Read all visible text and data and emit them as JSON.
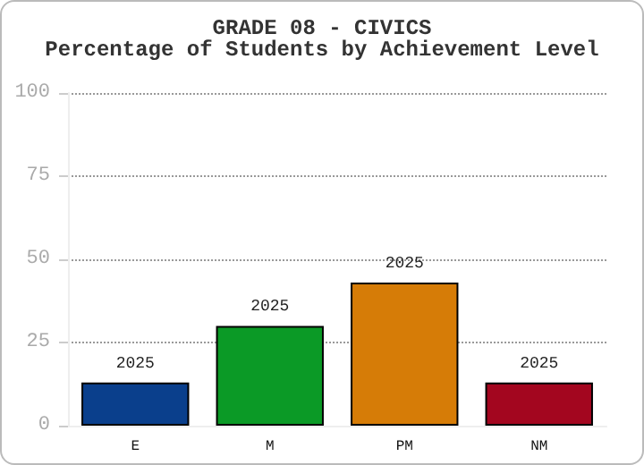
{
  "chart_data": {
    "type": "bar",
    "title": "GRADE 08 - CIVICS\nPercentage of Students by Achievement Level",
    "categories": [
      "E",
      "M",
      "PM",
      "NM"
    ],
    "series": [
      {
        "name": "2025",
        "values": [
          13,
          30,
          43,
          13
        ]
      }
    ],
    "colors": [
      "#0a3f8c",
      "#0b9a26",
      "#d67c07",
      "#a3061f"
    ],
    "ylim": [
      0,
      100
    ],
    "yticks": [
      0,
      25,
      50,
      75,
      100
    ],
    "grid": "y",
    "line_style": "dotted"
  }
}
